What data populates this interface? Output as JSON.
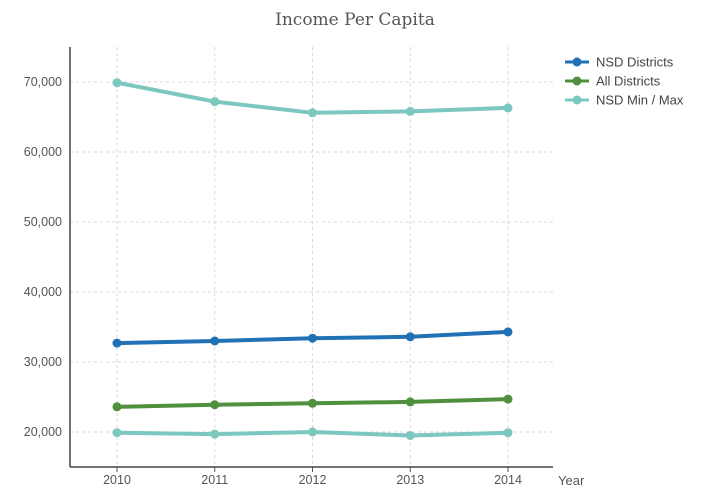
{
  "chart_data": {
    "type": "line",
    "title": "Income Per Capita",
    "xlabel": "Year",
    "ylabel": "",
    "categories": [
      "2010",
      "2011",
      "2012",
      "2013",
      "2014"
    ],
    "yticks": [
      20000,
      30000,
      40000,
      50000,
      60000,
      70000
    ],
    "ytick_labels": [
      "20,000",
      "30,000",
      "40,000",
      "50,000",
      "60,000",
      "70,000"
    ],
    "ylim": [
      15000,
      75000
    ],
    "grid": true,
    "legend_position": "top-right",
    "series": [
      {
        "name": "NSD Districts",
        "color": "#2171b5",
        "values": [
          32700,
          33000,
          33400,
          33600,
          34300
        ]
      },
      {
        "name": "All Districts",
        "color": "#4f8f3d",
        "values": [
          23600,
          23900,
          24100,
          24300,
          24700
        ]
      },
      {
        "name": "NSD Min / Max",
        "color": "#7cc7bf",
        "values": [
          69900,
          67200,
          65600,
          65800,
          66300
        ]
      },
      {
        "name": "",
        "color": "#7cc7bf",
        "values": [
          19900,
          19700,
          20000,
          19500,
          19900
        ]
      }
    ]
  }
}
